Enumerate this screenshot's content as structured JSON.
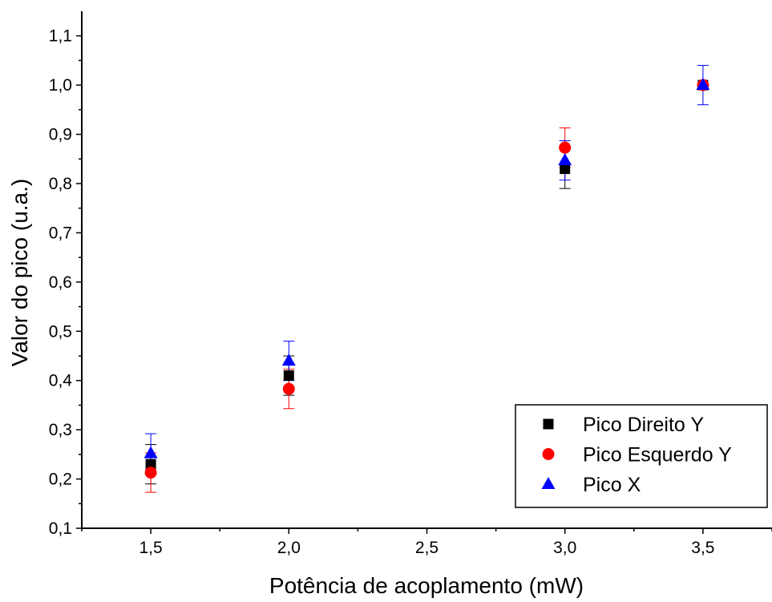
{
  "chart_data": {
    "type": "scatter",
    "title": "",
    "xlabel": "Potência de acoplamento (mW)",
    "ylabel": "Valor do pico (u.a.)",
    "xlim": [
      1.25,
      3.75
    ],
    "ylim": [
      0.1,
      1.15
    ],
    "x_ticks": [
      1.5,
      2.0,
      2.5,
      3.0,
      3.5
    ],
    "x_tick_labels": [
      "1,5",
      "2,0",
      "2,5",
      "3,0",
      "3,5"
    ],
    "y_ticks": [
      0.1,
      0.2,
      0.3,
      0.4,
      0.5,
      0.6,
      0.7,
      0.8,
      0.9,
      1.0,
      1.1
    ],
    "y_tick_labels": [
      "0,1",
      "0,2",
      "0,3",
      "0,4",
      "0,5",
      "0,6",
      "0,7",
      "0,8",
      "0,9",
      "1,0",
      "1,1"
    ],
    "grid": false,
    "legend_position": "bottom-right",
    "series": [
      {
        "name": "Pico Direito Y",
        "marker": "square",
        "color": "#000000",
        "x": [
          1.5,
          2.0,
          3.0,
          3.5
        ],
        "y": [
          0.23,
          0.41,
          0.83,
          1.0
        ],
        "err": [
          0.04,
          0.04,
          0.04,
          0.0
        ]
      },
      {
        "name": "Pico Esquerdo Y",
        "marker": "circle",
        "color": "#ff0000",
        "x": [
          1.5,
          2.0,
          3.0,
          3.5
        ],
        "y": [
          0.213,
          0.383,
          0.873,
          1.0
        ],
        "err": [
          0.04,
          0.04,
          0.04,
          0.0
        ]
      },
      {
        "name": "Pico X",
        "marker": "triangle",
        "color": "#0000ff",
        "x": [
          1.5,
          2.0,
          3.0,
          3.5
        ],
        "y": [
          0.252,
          0.44,
          0.847,
          1.0
        ],
        "err": [
          0.04,
          0.04,
          0.04,
          0.04
        ]
      }
    ]
  }
}
